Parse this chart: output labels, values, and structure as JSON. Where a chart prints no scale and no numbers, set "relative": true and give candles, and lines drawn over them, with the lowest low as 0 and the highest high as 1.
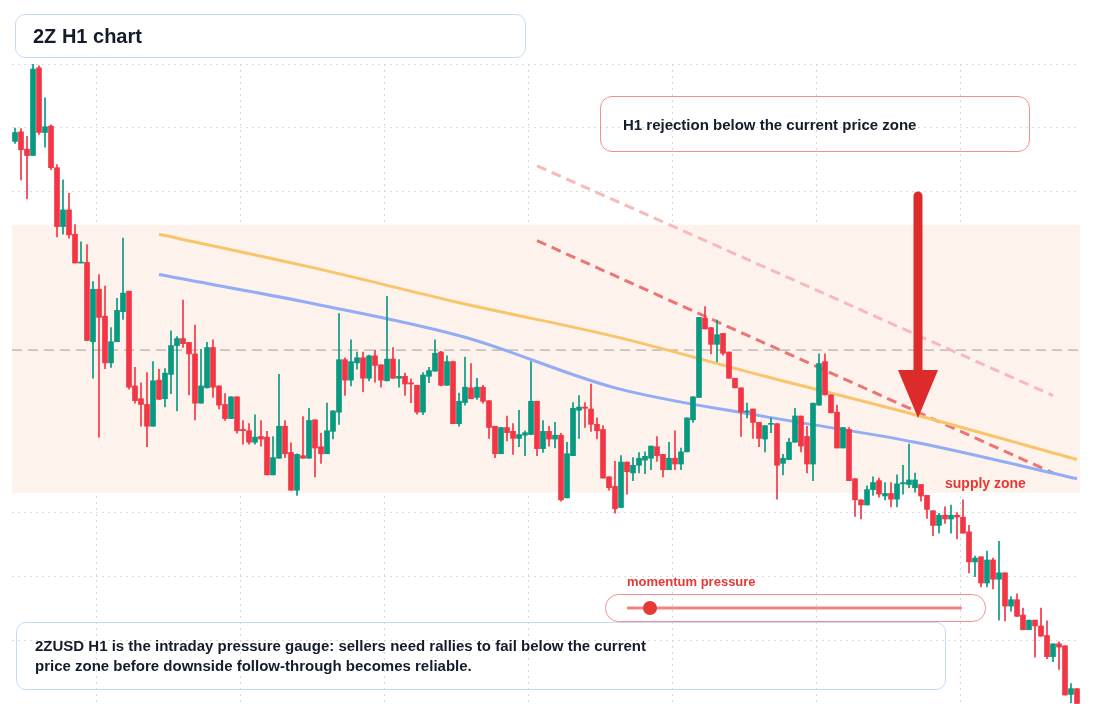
{
  "chart_data": {
    "type": "candlestick",
    "title": "2Z H1 chart",
    "relative": true,
    "grid": true,
    "annotations": [
      "H1 rejection below the current price zone",
      "momentum pressure",
      "2ZUSD H1 is the intraday pressure gauge: sellers need rallies to fail below the current price zone before downside follow-through becomes reliable."
    ],
    "categories": [
      null,
      null,
      null,
      null,
      null,
      null,
      null,
      null,
      null,
      null,
      null,
      null,
      null,
      null,
      null,
      null,
      null,
      null,
      null,
      null,
      null,
      null,
      null,
      null,
      null,
      null,
      null,
      null,
      null,
      null,
      null,
      null,
      null,
      null,
      null,
      null,
      null,
      null,
      null,
      null,
      null,
      null,
      null,
      null,
      null,
      null,
      null,
      null,
      null,
      null,
      null,
      null,
      null,
      null,
      null,
      null,
      null,
      null,
      null,
      null,
      null,
      null,
      null,
      null,
      null,
      null,
      null,
      null,
      null,
      null,
      null,
      null,
      null,
      null,
      null,
      null,
      null,
      null,
      null,
      null,
      null,
      null,
      null,
      null,
      null,
      null,
      null,
      null,
      null,
      null,
      null,
      null,
      null,
      null,
      null,
      null,
      null,
      null,
      null,
      null,
      null,
      null,
      null,
      null,
      null,
      null,
      null,
      null,
      null,
      null,
      null,
      null,
      null,
      null,
      null,
      null,
      null,
      null,
      null,
      null,
      null,
      null,
      null,
      null,
      null,
      null,
      null,
      null,
      null,
      null,
      null,
      null,
      null,
      null,
      null,
      null,
      null,
      null,
      null,
      null,
      null,
      null,
      null,
      null,
      null,
      null,
      null,
      null,
      null,
      null,
      null,
      null,
      null,
      null,
      null,
      null,
      null,
      null,
      null,
      null,
      null,
      null,
      null,
      null,
      null,
      null,
      null,
      null,
      null,
      null,
      null,
      null,
      null,
      null,
      null,
      null,
      null,
      null
    ],
    "ohlc": [
      [
        0.879,
        0.9,
        0.876,
        0.893
      ],
      [
        0.894,
        0.899,
        0.819,
        0.866
      ],
      [
        0.867,
        0.887,
        0.789,
        0.857
      ],
      [
        0.857,
        1,
        0.857,
        0.992
      ],
      [
        0.994,
        0.997,
        0.89,
        0.893
      ],
      [
        0.893,
        0.947,
        0.87,
        0.902
      ],
      [
        0.903,
        0.905,
        0.835,
        0.838
      ],
      [
        0.838,
        0.843,
        0.73,
        0.746
      ],
      [
        0.746,
        0.819,
        0.734,
        0.772
      ],
      [
        0.772,
        0.798,
        0.728,
        0.733
      ],
      [
        0.734,
        0.749,
        0.689,
        0.689
      ],
      [
        0.689,
        0.722,
        0.689,
        0.69
      ],
      [
        0.69,
        0.718,
        0.568,
        0.568
      ],
      [
        0.566,
        0.66,
        0.509,
        0.648
      ],
      [
        0.648,
        0.671,
        0.417,
        0.604
      ],
      [
        0.606,
        0.653,
        0.524,
        0.533
      ],
      [
        0.533,
        0.588,
        0.526,
        0.566
      ],
      [
        0.566,
        0.634,
        0.566,
        0.615
      ],
      [
        0.613,
        0.728,
        0.601,
        0.642
      ],
      [
        0.645,
        0.645,
        0.492,
        0.495
      ],
      [
        0.497,
        0.526,
        0.47,
        0.474
      ],
      [
        0.477,
        0.502,
        0.434,
        0.468
      ],
      [
        0.468,
        0.518,
        0.402,
        0.434
      ],
      [
        0.434,
        0.535,
        0.434,
        0.505
      ],
      [
        0.506,
        0.523,
        0.476,
        0.476
      ],
      [
        0.477,
        0.524,
        0.464,
        0.517
      ],
      [
        0.515,
        0.583,
        0.485,
        0.56
      ],
      [
        0.56,
        0.574,
        0.458,
        0.571
      ],
      [
        0.571,
        0.631,
        0.557,
        0.563
      ],
      [
        0.565,
        0.565,
        0.483,
        0.547
      ],
      [
        0.547,
        0.592,
        0.444,
        0.47
      ],
      [
        0.47,
        0.554,
        0.47,
        0.497
      ],
      [
        0.494,
        0.565,
        0.494,
        0.557
      ],
      [
        0.557,
        0.569,
        0.479,
        0.495
      ],
      [
        0.497,
        0.497,
        0.461,
        0.467
      ],
      [
        0.468,
        0.485,
        0.443,
        0.446
      ],
      [
        0.446,
        0.48,
        0.446,
        0.48
      ],
      [
        0.48,
        0.48,
        0.423,
        0.427
      ],
      [
        0.429,
        0.443,
        0.406,
        0.427
      ],
      [
        0.427,
        0.438,
        0.406,
        0.409
      ],
      [
        0.409,
        0.452,
        0.406,
        0.417
      ],
      [
        0.418,
        0.443,
        0.403,
        0.414
      ],
      [
        0.417,
        0.426,
        0.358,
        0.358
      ],
      [
        0.358,
        0.418,
        0.358,
        0.385
      ],
      [
        0.384,
        0.515,
        0.384,
        0.434
      ],
      [
        0.434,
        0.443,
        0.385,
        0.391
      ],
      [
        0.393,
        0.408,
        0.334,
        0.334
      ],
      [
        0.334,
        0.391,
        0.326,
        0.39
      ],
      [
        0.388,
        0.449,
        0.384,
        0.384
      ],
      [
        0.384,
        0.462,
        0.384,
        0.443
      ],
      [
        0.444,
        0.444,
        0.355,
        0.4
      ],
      [
        0.402,
        0.423,
        0.376,
        0.391
      ],
      [
        0.391,
        0.47,
        0.391,
        0.427
      ],
      [
        0.426,
        0.458,
        0.414,
        0.458
      ],
      [
        0.456,
        0.61,
        0.437,
        0.538
      ],
      [
        0.538,
        0.541,
        0.482,
        0.506
      ],
      [
        0.506,
        0.569,
        0.497,
        0.535
      ],
      [
        0.533,
        0.55,
        0.523,
        0.541
      ],
      [
        0.541,
        0.55,
        0.488,
        0.509
      ],
      [
        0.509,
        0.545,
        0.505,
        0.544
      ],
      [
        0.544,
        0.553,
        0.503,
        0.529
      ],
      [
        0.53,
        0.53,
        0.495,
        0.506
      ],
      [
        0.505,
        0.637,
        0.505,
        0.539
      ],
      [
        0.539,
        0.557,
        0.509,
        0.509
      ],
      [
        0.509,
        0.538,
        0.495,
        0.512
      ],
      [
        0.512,
        0.517,
        0.482,
        0.5
      ],
      [
        0.502,
        0.508,
        0.471,
        0.5
      ],
      [
        0.498,
        0.498,
        0.453,
        0.456
      ],
      [
        0.456,
        0.518,
        0.452,
        0.514
      ],
      [
        0.512,
        0.526,
        0.502,
        0.521
      ],
      [
        0.52,
        0.569,
        0.52,
        0.548
      ],
      [
        0.55,
        0.551,
        0.497,
        0.498
      ],
      [
        0.498,
        0.544,
        0.498,
        0.535
      ],
      [
        0.535,
        0.536,
        0.438,
        0.438
      ],
      [
        0.438,
        0.486,
        0.434,
        0.473
      ],
      [
        0.471,
        0.542,
        0.467,
        0.495
      ],
      [
        0.494,
        0.532,
        0.477,
        0.477
      ],
      [
        0.479,
        0.509,
        0.476,
        0.495
      ],
      [
        0.495,
        0.498,
        0.47,
        0.473
      ],
      [
        0.474,
        0.474,
        0.415,
        0.432
      ],
      [
        0.434,
        0.434,
        0.385,
        0.391
      ],
      [
        0.391,
        0.432,
        0.391,
        0.432
      ],
      [
        0.432,
        0.45,
        0.411,
        0.424
      ],
      [
        0.426,
        0.438,
        0.39,
        0.415
      ],
      [
        0.415,
        0.459,
        0.402,
        0.421
      ],
      [
        0.42,
        0.427,
        0.388,
        0.424
      ],
      [
        0.421,
        0.535,
        0.421,
        0.473
      ],
      [
        0.473,
        0.473,
        0.388,
        0.399
      ],
      [
        0.399,
        0.443,
        0.393,
        0.426
      ],
      [
        0.426,
        0.434,
        0.403,
        0.414
      ],
      [
        0.414,
        0.44,
        0.4,
        0.42
      ],
      [
        0.42,
        0.423,
        0.317,
        0.319
      ],
      [
        0.322,
        0.409,
        0.322,
        0.391
      ],
      [
        0.388,
        0.471,
        0.388,
        0.462
      ],
      [
        0.459,
        0.482,
        0.415,
        0.464
      ],
      [
        0.464,
        0.471,
        0.432,
        0.462
      ],
      [
        0.461,
        0.5,
        0.426,
        0.437
      ],
      [
        0.437,
        0.447,
        0.414,
        0.427
      ],
      [
        0.429,
        0.435,
        0.353,
        0.353
      ],
      [
        0.355,
        0.355,
        0.334,
        0.338
      ],
      [
        0.34,
        0.379,
        0.298,
        0.305
      ],
      [
        0.307,
        0.388,
        0.307,
        0.378
      ],
      [
        0.378,
        0.378,
        0.328,
        0.363
      ],
      [
        0.361,
        0.385,
        0.349,
        0.373
      ],
      [
        0.373,
        0.393,
        0.361,
        0.384
      ],
      [
        0.381,
        0.394,
        0.36,
        0.387
      ],
      [
        0.384,
        0.403,
        0.366,
        0.403
      ],
      [
        0.402,
        0.418,
        0.379,
        0.388
      ],
      [
        0.39,
        0.39,
        0.355,
        0.366
      ],
      [
        0.366,
        0.409,
        0.366,
        0.384
      ],
      [
        0.384,
        0.427,
        0.366,
        0.375
      ],
      [
        0.375,
        0.4,
        0.366,
        0.394
      ],
      [
        0.394,
        0.447,
        0.394,
        0.447
      ],
      [
        0.444,
        0.48,
        0.44,
        0.48
      ],
      [
        0.479,
        0.604,
        0.479,
        0.604
      ],
      [
        0.603,
        0.621,
        0.586,
        0.586
      ],
      [
        0.588,
        0.588,
        0.547,
        0.562
      ],
      [
        0.562,
        0.6,
        0.535,
        0.577
      ],
      [
        0.579,
        0.579,
        0.545,
        0.548
      ],
      [
        0.55,
        0.55,
        0.509,
        0.509
      ],
      [
        0.509,
        0.509,
        0.494,
        0.494
      ],
      [
        0.494,
        0.494,
        0.418,
        0.456
      ],
      [
        0.456,
        0.47,
        0.447,
        0.458
      ],
      [
        0.461,
        0.461,
        0.415,
        0.44
      ],
      [
        0.44,
        0.44,
        0.402,
        0.415
      ],
      [
        0.414,
        0.435,
        0.394,
        0.435
      ],
      [
        0.437,
        0.447,
        0.424,
        0.438
      ],
      [
        0.438,
        0.438,
        0.32,
        0.373
      ],
      [
        0.376,
        0.39,
        0.358,
        0.384
      ],
      [
        0.382,
        0.415,
        0.382,
        0.409
      ],
      [
        0.409,
        0.462,
        0.409,
        0.45
      ],
      [
        0.45,
        0.45,
        0.394,
        0.403
      ],
      [
        0.418,
        0.434,
        0.361,
        0.375
      ],
      [
        0.375,
        0.47,
        0.349,
        0.47
      ],
      [
        0.467,
        0.547,
        0.467,
        0.532
      ],
      [
        0.535,
        0.547,
        0.483,
        0.483
      ],
      [
        0.483,
        0.483,
        0.455,
        0.455
      ],
      [
        0.456,
        0.467,
        0.4,
        0.4
      ],
      [
        0.4,
        0.432,
        0.4,
        0.432
      ],
      [
        0.429,
        0.432,
        0.349,
        0.349
      ],
      [
        0.352,
        0.352,
        0.293,
        0.319
      ],
      [
        0.319,
        0.319,
        0.289,
        0.311
      ],
      [
        0.311,
        0.341,
        0.311,
        0.335
      ],
      [
        0.335,
        0.355,
        0.326,
        0.346
      ],
      [
        0.349,
        0.353,
        0.323,
        0.328
      ],
      [
        0.325,
        0.346,
        0.319,
        0.329
      ],
      [
        0.329,
        0.346,
        0.308,
        0.32
      ],
      [
        0.32,
        0.358,
        0.308,
        0.344
      ],
      [
        0.344,
        0.373,
        0.328,
        0.346
      ],
      [
        0.343,
        0.406,
        0.338,
        0.35
      ],
      [
        0.338,
        0.361,
        0.331,
        0.35
      ],
      [
        0.343,
        0.343,
        0.317,
        0.325
      ],
      [
        0.326,
        0.326,
        0.29,
        0.304
      ],
      [
        0.302,
        0.302,
        0.263,
        0.279
      ],
      [
        0.279,
        0.298,
        0.267,
        0.295
      ],
      [
        0.295,
        0.308,
        0.282,
        0.289
      ],
      [
        0.289,
        0.311,
        0.267,
        0.295
      ],
      [
        0.295,
        0.299,
        0.258,
        0.292
      ],
      [
        0.292,
        0.319,
        0.267,
        0.267
      ],
      [
        0.269,
        0.279,
        0.205,
        0.222
      ],
      [
        0.222,
        0.231,
        0.199,
        0.228
      ],
      [
        0.23,
        0.23,
        0.183,
        0.189
      ],
      [
        0.189,
        0.239,
        0.183,
        0.225
      ],
      [
        0.225,
        0.228,
        0.18,
        0.195
      ],
      [
        0.195,
        0.254,
        0.131,
        0.205
      ],
      [
        0.205,
        0.205,
        0.13,
        0.153
      ],
      [
        0.153,
        0.168,
        0.145,
        0.163
      ],
      [
        0.163,
        0.172,
        0.137,
        0.137
      ],
      [
        0.139,
        0.15,
        0.116,
        0.116
      ],
      [
        0.116,
        0.131,
        0.116,
        0.131
      ],
      [
        0.131,
        0.131,
        0.073,
        0.122
      ],
      [
        0.122,
        0.15,
        0.106,
        0.106
      ],
      [
        0.107,
        0.13,
        0.071,
        0.074
      ],
      [
        0.074,
        0.094,
        0.066,
        0.094
      ],
      [
        0.094,
        0.097,
        0.054,
        0.089
      ],
      [
        0.091,
        0.091,
        0.014,
        0.014
      ],
      [
        0.015,
        0.032,
        0.002,
        0.024
      ],
      [
        0.024,
        0.024,
        0,
        0
      ]
    ],
    "colors": [
      "#089981",
      "#f23645",
      "#f23645",
      "#089981",
      "#f23645",
      "#089981",
      "#f23645",
      "#f23645",
      "#089981",
      "#f23645",
      "#f23645",
      "#089981",
      "#f23645",
      "#089981",
      "#f23645",
      "#f23645",
      "#089981",
      "#089981",
      "#089981",
      "#f23645",
      "#f23645",
      "#f23645",
      "#f23645",
      "#089981",
      "#f23645",
      "#089981",
      "#089981",
      "#089981",
      "#f23645",
      "#f23645",
      "#f23645",
      "#089981",
      "#089981",
      "#f23645",
      "#f23645",
      "#f23645",
      "#089981",
      "#f23645",
      "#f23645",
      "#f23645",
      "#089981",
      "#f23645",
      "#f23645",
      "#089981",
      "#089981",
      "#f23645",
      "#f23645",
      "#089981",
      "#f23645",
      "#089981",
      "#f23645",
      "#f23645",
      "#089981",
      "#089981",
      "#089981",
      "#f23645",
      "#089981",
      "#089981",
      "#f23645",
      "#089981",
      "#f23645",
      "#f23645",
      "#089981",
      "#f23645",
      "#089981",
      "#f23645",
      "#f23645",
      "#f23645",
      "#089981",
      "#089981",
      "#089981",
      "#f23645",
      "#089981",
      "#f23645",
      "#089981",
      "#089981",
      "#f23645",
      "#089981",
      "#f23645",
      "#f23645",
      "#f23645",
      "#089981",
      "#f23645",
      "#f23645",
      "#089981",
      "#089981",
      "#089981",
      "#f23645",
      "#089981",
      "#f23645",
      "#089981",
      "#f23645",
      "#089981",
      "#089981",
      "#089981",
      "#f23645",
      "#f23645",
      "#f23645",
      "#f23645",
      "#f23645",
      "#f23645",
      "#089981",
      "#f23645",
      "#089981",
      "#089981",
      "#089981",
      "#089981",
      "#f23645",
      "#f23645",
      "#089981",
      "#f23645",
      "#089981",
      "#089981",
      "#089981",
      "#089981",
      "#f23645",
      "#f23645",
      "#089981",
      "#f23645",
      "#f23645",
      "#f23645",
      "#f23645",
      "#089981",
      "#f23645",
      "#f23645",
      "#089981",
      "#089981",
      "#f23645",
      "#089981",
      "#089981",
      "#089981",
      "#f23645",
      "#f23645",
      "#089981",
      "#089981",
      "#f23645",
      "#f23645",
      "#f23645",
      "#089981",
      "#f23645",
      "#f23645",
      "#f23645",
      "#089981",
      "#089981",
      "#f23645",
      "#089981",
      "#f23645",
      "#089981",
      "#089981",
      "#089981",
      "#089981",
      "#f23645",
      "#f23645",
      "#f23645",
      "#089981",
      "#f23645",
      "#089981",
      "#f23645",
      "#f23645",
      "#f23645",
      "#089981",
      "#f23645",
      "#089981",
      "#f23645",
      "#089981",
      "#f23645",
      "#089981",
      "#f23645",
      "#f23645",
      "#089981",
      "#f23645",
      "#f23645",
      "#f23645",
      "#089981",
      "#f23645",
      "#f23645",
      "#089981",
      "#f23645"
    ],
    "series": [
      {
        "type": "line",
        "color": "#f9c46b",
        "line_style": "solid",
        "values": [
          null,
          null,
          null,
          null,
          null,
          null,
          null,
          null,
          null,
          null,
          null,
          null,
          null,
          null,
          null,
          null,
          null,
          null,
          null,
          null,
          null,
          null,
          null,
          null,
          0.734,
          null,
          null,
          null,
          null,
          null,
          null,
          null,
          null,
          null,
          null,
          null,
          null,
          null,
          null,
          null,
          null,
          null,
          null,
          null,
          null,
          null,
          null,
          null,
          null,
          null,
          0.681,
          null,
          null,
          null,
          null,
          null,
          null,
          null,
          null,
          null,
          null,
          null,
          null,
          null,
          null,
          null,
          null,
          null,
          null,
          null,
          null,
          null,
          null,
          null,
          null,
          0.625,
          null,
          null,
          null,
          null,
          null,
          null,
          null,
          null,
          null,
          null,
          null,
          null,
          null,
          null,
          null,
          null,
          null,
          null,
          null,
          null,
          null,
          null,
          null,
          null,
          0.574,
          null,
          null,
          null,
          null,
          null,
          null,
          null,
          null,
          null,
          null,
          null,
          null,
          null,
          null,
          null,
          null,
          null,
          null,
          null,
          null,
          null,
          null,
          null,
          null,
          0.512,
          null,
          null,
          null,
          null,
          null,
          null,
          null,
          null,
          null,
          null,
          null,
          null,
          null,
          null,
          null,
          null,
          null,
          null,
          null,
          null,
          null,
          null,
          null,
          null,
          0.452,
          null,
          null,
          null,
          null,
          null,
          null,
          null,
          null,
          null,
          null,
          null,
          null,
          null,
          null,
          null,
          null,
          null,
          null,
          null,
          null,
          null,
          null,
          null,
          null,
          null,
          null,
          0.382
        ]
      },
      {
        "type": "line",
        "color": "#93acf6",
        "line_style": "solid",
        "values": [
          null,
          null,
          null,
          null,
          null,
          null,
          null,
          null,
          null,
          null,
          null,
          null,
          null,
          null,
          null,
          null,
          null,
          null,
          null,
          null,
          null,
          null,
          null,
          null,
          0.671,
          null,
          null,
          null,
          null,
          null,
          null,
          null,
          null,
          null,
          null,
          null,
          null,
          null,
          null,
          null,
          null,
          null,
          null,
          null,
          null,
          null,
          null,
          null,
          null,
          null,
          0.625,
          null,
          null,
          null,
          null,
          null,
          null,
          null,
          null,
          null,
          null,
          null,
          null,
          null,
          null,
          null,
          null,
          null,
          null,
          null,
          null,
          null,
          null,
          null,
          null,
          0.573,
          null,
          null,
          null,
          null,
          null,
          null,
          null,
          null,
          null,
          null,
          null,
          null,
          null,
          null,
          null,
          null,
          null,
          null,
          null,
          null,
          null,
          null,
          null,
          null,
          0.494,
          null,
          null,
          null,
          null,
          null,
          null,
          null,
          null,
          null,
          null,
          null,
          null,
          null,
          null,
          null,
          null,
          null,
          null,
          null,
          null,
          null,
          null,
          null,
          null,
          0.449,
          null,
          null,
          null,
          null,
          null,
          null,
          null,
          null,
          null,
          null,
          null,
          null,
          null,
          null,
          null,
          null,
          null,
          null,
          null,
          null,
          null,
          null,
          null,
          null,
          0.409,
          null,
          null,
          null,
          null,
          null,
          null,
          null,
          null,
          null,
          null,
          null,
          null,
          null,
          null,
          null,
          null,
          null,
          null,
          null,
          null,
          null,
          null,
          null,
          null,
          null,
          null,
          0.352
        ]
      },
      {
        "type": "line",
        "color": "#e97575",
        "line_style": "dashed",
        "values": [
          null,
          null,
          null,
          null,
          null,
          null,
          null,
          null,
          null,
          null,
          null,
          null,
          null,
          null,
          null,
          null,
          null,
          null,
          null,
          null,
          null,
          null,
          null,
          null,
          null,
          null,
          null,
          null,
          null,
          null,
          null,
          null,
          null,
          null,
          null,
          null,
          null,
          null,
          null,
          null,
          null,
          null,
          null,
          null,
          null,
          null,
          null,
          null,
          null,
          null,
          null,
          null,
          null,
          null,
          null,
          null,
          null,
          null,
          null,
          null,
          null,
          null,
          null,
          null,
          null,
          null,
          null,
          null,
          null,
          null,
          null,
          null,
          null,
          null,
          null,
          null,
          null,
          null,
          null,
          null,
          null,
          null,
          null,
          null,
          null,
          null,
          null,
          0.724,
          null,
          null,
          null,
          null,
          null,
          null,
          null,
          null,
          null,
          null,
          null,
          null,
          null,
          null,
          null,
          null,
          null,
          null,
          null,
          null,
          null,
          null,
          null,
          null,
          null,
          null,
          null,
          null,
          null,
          null,
          null,
          null,
          null,
          null,
          null,
          null,
          null,
          null,
          null,
          null,
          null,
          null,
          null,
          null,
          null,
          null,
          null,
          null,
          null,
          null,
          null,
          null,
          null,
          null,
          null,
          null,
          null,
          null,
          null,
          null,
          null,
          null,
          null,
          null,
          null,
          null,
          null,
          null,
          null,
          null,
          null,
          null,
          null,
          null,
          null,
          null,
          null,
          null,
          null,
          null,
          null,
          null,
          null,
          null,
          null,
          0.361,
          null,
          null,
          null,
          null
        ]
      },
      {
        "type": "line",
        "color": "#f6baba",
        "line_style": "dashed",
        "values": [
          null,
          null,
          null,
          null,
          null,
          null,
          null,
          null,
          null,
          null,
          null,
          null,
          null,
          null,
          null,
          null,
          null,
          null,
          null,
          null,
          null,
          null,
          null,
          null,
          null,
          null,
          null,
          null,
          null,
          null,
          null,
          null,
          null,
          null,
          null,
          null,
          null,
          null,
          null,
          null,
          null,
          null,
          null,
          null,
          null,
          null,
          null,
          null,
          null,
          null,
          null,
          null,
          null,
          null,
          null,
          null,
          null,
          null,
          null,
          null,
          null,
          null,
          null,
          null,
          null,
          null,
          null,
          null,
          null,
          null,
          null,
          null,
          null,
          null,
          null,
          null,
          null,
          null,
          null,
          null,
          null,
          null,
          null,
          null,
          null,
          null,
          null,
          0.841,
          null,
          null,
          null,
          null,
          null,
          null,
          null,
          null,
          null,
          null,
          null,
          null,
          null,
          null,
          null,
          null,
          null,
          null,
          null,
          null,
          null,
          null,
          null,
          null,
          null,
          null,
          null,
          null,
          null,
          null,
          null,
          null,
          null,
          null,
          null,
          null,
          null,
          null,
          null,
          null,
          null,
          null,
          null,
          null,
          null,
          null,
          null,
          null,
          null,
          null,
          null,
          null,
          null,
          null,
          null,
          null,
          null,
          null,
          null,
          null,
          null,
          null,
          null,
          null,
          null,
          null,
          null,
          null,
          null,
          null,
          null,
          null,
          null,
          null,
          null,
          null,
          null,
          null,
          null,
          null,
          null,
          null,
          null,
          null,
          null,
          0.482,
          null,
          null,
          null,
          null
        ]
      }
    ],
    "bands": [
      {
        "axis": "y",
        "from": 0.33,
        "to": 0.749,
        "label": "supply zone",
        "color": "#fdf3ec"
      }
    ],
    "ref_lines": [
      {
        "axis": "y",
        "value": 0.553,
        "color": "#9e9e9e",
        "line_style": "dashed"
      }
    ]
  }
}
